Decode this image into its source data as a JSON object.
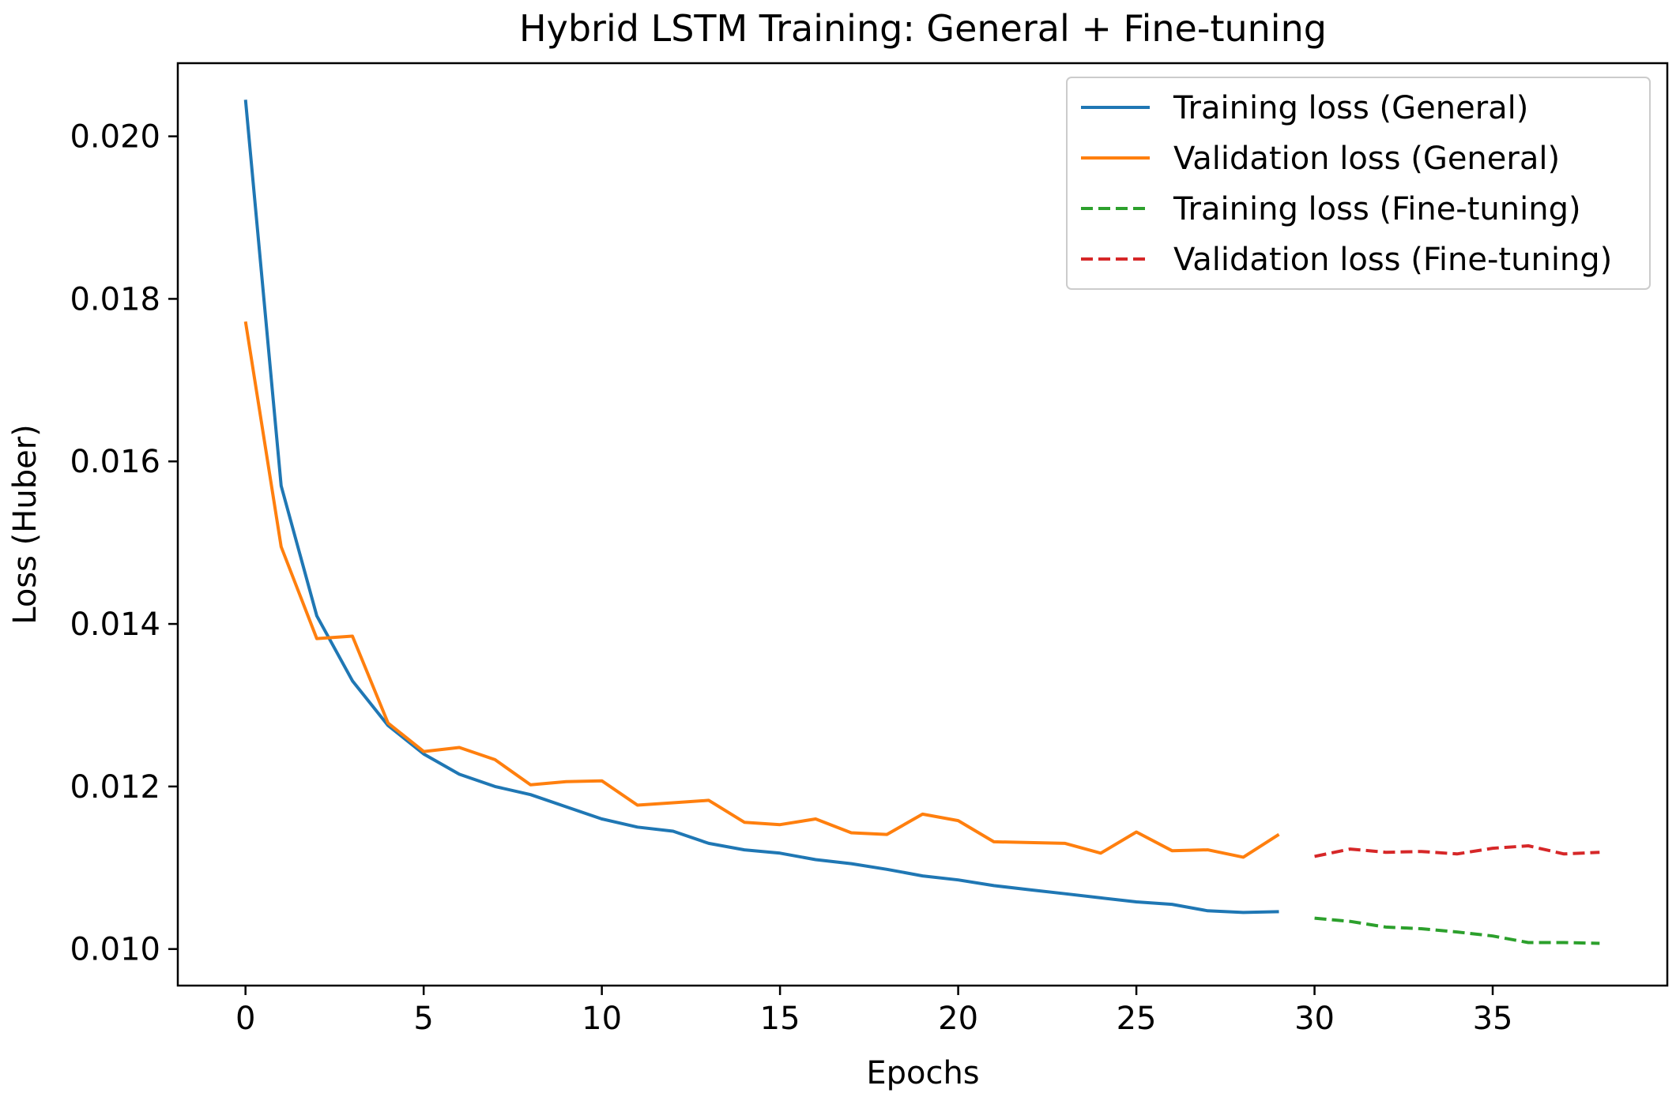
{
  "chart_data": {
    "type": "line",
    "title": "Hybrid LSTM Training: General + Fine-tuning",
    "xlabel": "Epochs",
    "ylabel": "Loss (Huber)",
    "xlim": [
      -1.9,
      39.9
    ],
    "ylim": [
      0.00955,
      0.0209
    ],
    "xticks": [
      0,
      5,
      10,
      15,
      20,
      25,
      30,
      35
    ],
    "yticks": [
      0.01,
      0.012,
      0.014,
      0.016,
      0.018,
      0.02
    ],
    "ytick_labels": [
      "0.010",
      "0.012",
      "0.014",
      "0.016",
      "0.018",
      "0.020"
    ],
    "grid": false,
    "legend_position": "top-right",
    "series": [
      {
        "name": "Training loss (General)",
        "color": "#1f77b4",
        "dash": "solid",
        "x": [
          0,
          1,
          2,
          3,
          4,
          5,
          6,
          7,
          8,
          9,
          10,
          11,
          12,
          13,
          14,
          15,
          16,
          17,
          18,
          19,
          20,
          21,
          22,
          23,
          24,
          25,
          26,
          27,
          28,
          29
        ],
        "y": [
          0.02045,
          0.0157,
          0.0141,
          0.0133,
          0.01275,
          0.0124,
          0.01215,
          0.012,
          0.0119,
          0.01175,
          0.0116,
          0.0115,
          0.01145,
          0.0113,
          0.01122,
          0.01118,
          0.0111,
          0.01105,
          0.01098,
          0.0109,
          0.01085,
          0.01078,
          0.01073,
          0.01068,
          0.01063,
          0.01058,
          0.01055,
          0.01047,
          0.01045,
          0.01046
        ]
      },
      {
        "name": "Validation loss (General)",
        "color": "#ff7f0e",
        "dash": "solid",
        "x": [
          0,
          1,
          2,
          3,
          4,
          5,
          6,
          7,
          8,
          9,
          10,
          11,
          12,
          13,
          14,
          15,
          16,
          17,
          18,
          19,
          20,
          21,
          22,
          23,
          24,
          25,
          26,
          27,
          28,
          29
        ],
        "y": [
          0.01772,
          0.01495,
          0.01382,
          0.01385,
          0.01278,
          0.01243,
          0.01248,
          0.01233,
          0.01202,
          0.01206,
          0.01207,
          0.01177,
          0.0118,
          0.01183,
          0.01156,
          0.01153,
          0.0116,
          0.01143,
          0.01141,
          0.01166,
          0.01158,
          0.01132,
          0.01131,
          0.0113,
          0.01118,
          0.01144,
          0.01121,
          0.01122,
          0.01113,
          0.01141
        ]
      },
      {
        "name": "Training loss (Fine-tuning)",
        "color": "#2ca02c",
        "dash": "dashed",
        "x": [
          30,
          31,
          32,
          33,
          34,
          35,
          36,
          37,
          38
        ],
        "y": [
          0.01038,
          0.01034,
          0.01027,
          0.01025,
          0.01021,
          0.01016,
          0.01008,
          0.01008,
          0.01007
        ]
      },
      {
        "name": "Validation loss (Fine-tuning)",
        "color": "#d62728",
        "dash": "dashed",
        "x": [
          30,
          31,
          32,
          33,
          34,
          35,
          36,
          37,
          38
        ],
        "y": [
          0.01114,
          0.01123,
          0.01119,
          0.0112,
          0.01117,
          0.01124,
          0.01127,
          0.01117,
          0.01119
        ]
      }
    ]
  }
}
